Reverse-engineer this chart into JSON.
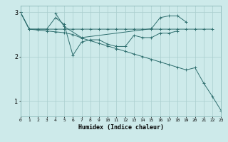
{
  "xlabel": "Humidex (Indice chaleur)",
  "x_ticks": [
    0,
    1,
    2,
    3,
    4,
    5,
    6,
    7,
    8,
    9,
    10,
    11,
    12,
    13,
    14,
    15,
    16,
    17,
    18,
    19,
    20,
    21,
    22,
    23
  ],
  "y_ticks": [
    1,
    2,
    3
  ],
  "xlim": [
    0,
    23
  ],
  "ylim": [
    0.65,
    3.15
  ],
  "bg_color": "#cdeaea",
  "grid_color": "#aacece",
  "line_color": "#2e6e6e",
  "series": [
    [
      3.0,
      2.62,
      2.62,
      2.62,
      2.88,
      2.73,
      2.03,
      2.33,
      2.38,
      2.38,
      2.28,
      2.23,
      2.23,
      2.48,
      2.43,
      2.43,
      2.53,
      2.53,
      2.58,
      null,
      null,
      null,
      null,
      null
    ],
    [
      null,
      null,
      null,
      null,
      2.98,
      2.68,
      null,
      2.43,
      null,
      null,
      null,
      null,
      null,
      null,
      null,
      2.63,
      2.88,
      2.92,
      2.92,
      2.78,
      null,
      null,
      null,
      null
    ],
    [
      3.0,
      2.62,
      2.62,
      2.62,
      2.62,
      2.62,
      2.62,
      2.62,
      2.62,
      2.62,
      2.62,
      2.62,
      2.62,
      2.62,
      2.62,
      2.62,
      2.62,
      2.62,
      2.62,
      2.62,
      2.62,
      2.62,
      2.62,
      null
    ],
    [
      3.0,
      2.62,
      2.6,
      2.58,
      2.56,
      2.54,
      2.5,
      2.42,
      2.36,
      2.3,
      2.24,
      2.18,
      2.12,
      2.06,
      2.0,
      1.94,
      1.88,
      1.82,
      1.76,
      1.7,
      1.75,
      1.4,
      1.1,
      0.78
    ]
  ]
}
